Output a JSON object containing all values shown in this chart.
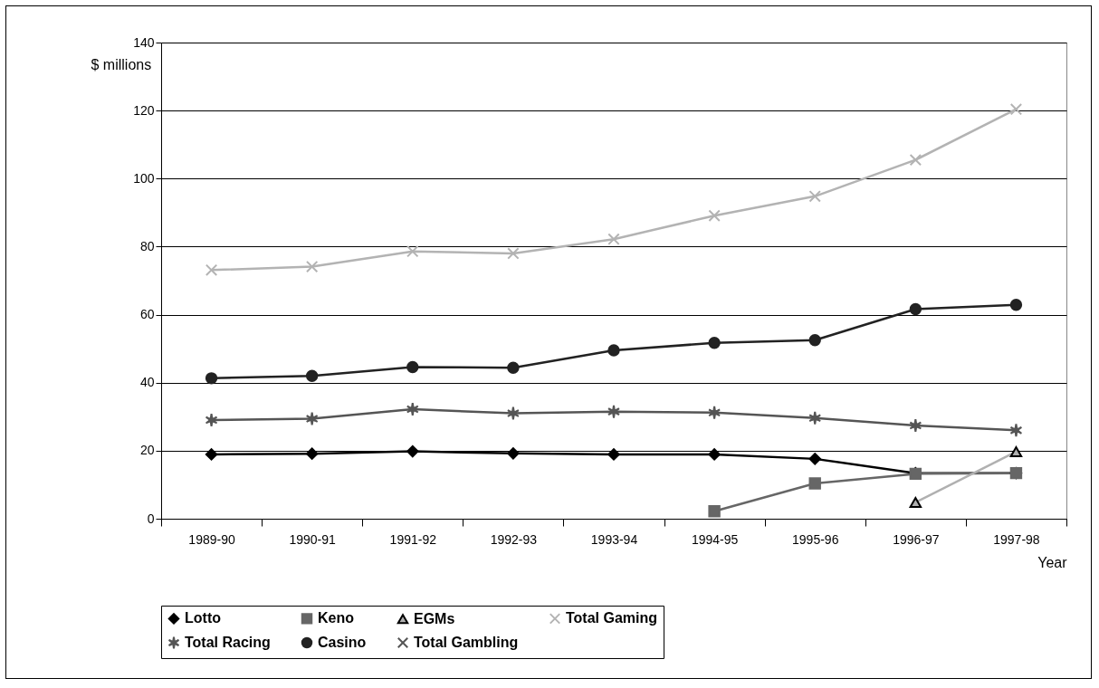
{
  "chart_data": {
    "type": "line",
    "xlabel": "Year",
    "ylabel": "$ millions",
    "categories": [
      "1989-90",
      "1990-91",
      "1991-92",
      "1992-93",
      "1993-94",
      "1994-95",
      "1995-96",
      "1996-97",
      "1997-98"
    ],
    "series": [
      {
        "name": "Lotto",
        "color": "#000000",
        "marker": "diamond",
        "values": [
          18.9,
          19.1,
          19.8,
          19.2,
          18.9,
          18.9,
          17.6,
          13.4,
          13.4
        ]
      },
      {
        "name": "Keno",
        "color": "#666666",
        "marker": "square",
        "values": [
          null,
          null,
          null,
          null,
          null,
          2.2,
          10.4,
          13.2,
          13.4
        ]
      },
      {
        "name": "EGMs",
        "color": "#b0b0b0",
        "marker": "triangle",
        "values": [
          null,
          null,
          null,
          null,
          null,
          null,
          null,
          4.8,
          19.7
        ]
      },
      {
        "name": "Total Gaming",
        "color": "#b3b3b3",
        "marker": "cross",
        "values": [
          73.1,
          74.1,
          78.6,
          78.0,
          82.2,
          89.1,
          94.8,
          105.5,
          120.4
        ]
      },
      {
        "name": "Total Racing",
        "color": "#555555",
        "marker": "star",
        "values": [
          29.0,
          29.4,
          32.2,
          31.0,
          31.5,
          31.2,
          29.6,
          27.4,
          26.0
        ]
      },
      {
        "name": "Casino",
        "color": "#222222",
        "marker": "circle",
        "values": [
          41.3,
          42.0,
          44.6,
          44.4,
          49.5,
          51.7,
          52.5,
          61.6,
          62.9
        ]
      },
      {
        "name": "Total Gambling",
        "color": "#555555",
        "marker": "cross",
        "values": [
          null,
          null,
          null,
          null,
          null,
          null,
          null,
          null,
          null
        ]
      }
    ],
    "ylim": [
      0,
      140
    ],
    "yticks": [
      0,
      20,
      40,
      60,
      80,
      100,
      120,
      140
    ],
    "grid": "y",
    "legend": "bottom"
  }
}
